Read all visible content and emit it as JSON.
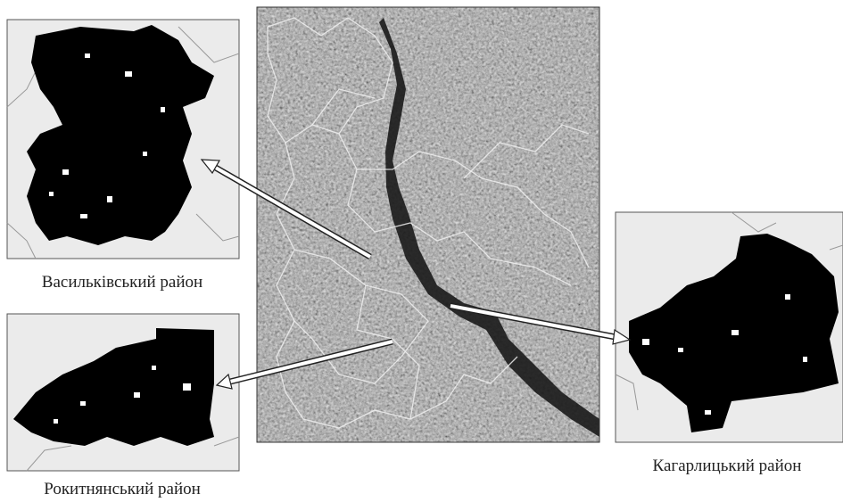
{
  "panels": [
    {
      "label": "Васильківський район"
    },
    {
      "label": "Рокитнянський район"
    },
    {
      "label": "Кагарлицький район"
    }
  ]
}
